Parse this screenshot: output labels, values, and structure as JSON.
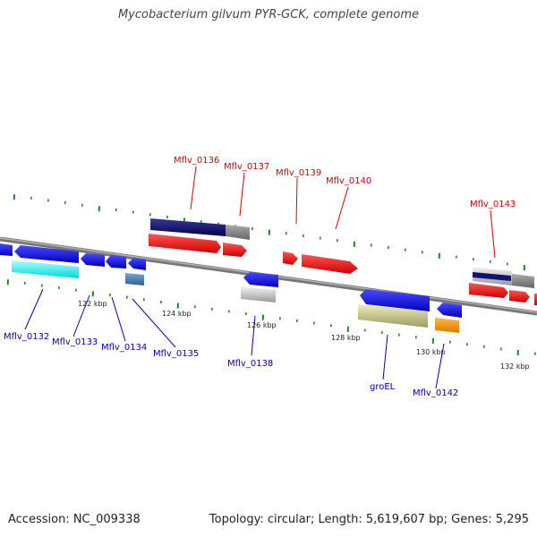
{
  "title": "Mycobacterium gilvum PYR-GCK, complete genome",
  "footer": {
    "accession": "Accession: NC_009338",
    "summary": "Topology: circular; Length: 5,619,607 bp; Genes: 5,295"
  },
  "colors": {
    "forward_label": "#dd0000",
    "reverse_label": "#0000cc",
    "backbone": "#888888",
    "tick": "#228822"
  },
  "scale_labels": [
    "122 kbp",
    "124 kbp",
    "126 kbp",
    "128 kbp",
    "130 kbp",
    "132 kbp"
  ],
  "gene_labels_top": [
    "Mflv_0136",
    "Mflv_0137",
    "Mflv_0139",
    "Mflv_0140",
    "Mflv_0143"
  ],
  "gene_labels_bottom": [
    "Mflv_0132",
    "Mflv_0133",
    "Mflv_0134",
    "Mflv_0135",
    "Mflv_0138",
    "groEL",
    "Mflv_0142"
  ]
}
